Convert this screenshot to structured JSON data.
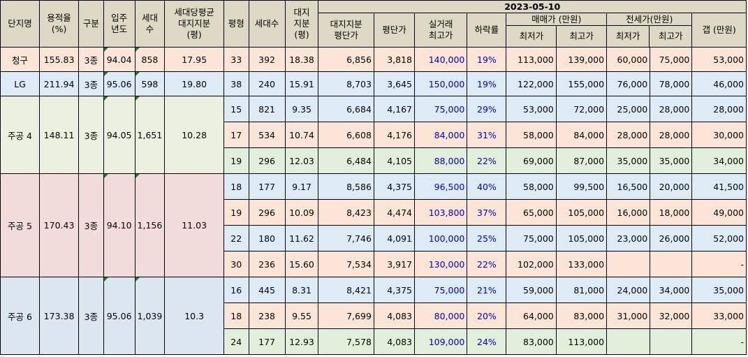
{
  "headers": {
    "complex": "단지명",
    "far": "용적율\n(%)",
    "zone": "구분",
    "year": "입주\n년도",
    "households": "세대\n수",
    "avg_land": "세대당평균\n대지지분\n(평)",
    "size": "평형",
    "size_households": "세대수",
    "land_share": "대지\n지분\n(평)",
    "date": "2023-05-10",
    "land_price": "대지지분\n평단가",
    "price_per_py": "평단가",
    "real_max": "실거래\n최고가",
    "drop": "하락률",
    "sale_group": "매매가 (만원)",
    "sale_min": "최저가",
    "sale_max": "최고가",
    "jeonse_group": "전세가(만원)",
    "jeonse_min": "최저가",
    "jeonse_max": "최고가",
    "gap": "갭 (만원)"
  },
  "complexes": [
    {
      "name": "청구",
      "far": "155.83",
      "zone": "3종",
      "year": "94.04",
      "households": "858",
      "avg_land": "17.95",
      "theme": "cg",
      "rows": [
        {
          "size": "33",
          "hh": "392",
          "land": "18.38",
          "land_price": "6,856",
          "price": "3,818",
          "real_max": "140,000",
          "drop": "19%",
          "sale_min": "113,000",
          "sale_max": "139,000",
          "jeonse_min": "60,000",
          "jeonse_max": "75,000",
          "gap": "53,000"
        }
      ]
    },
    {
      "name": "LG",
      "far": "211.94",
      "zone": "3종",
      "year": "95.06",
      "households": "598",
      "avg_land": "19.80",
      "theme": "lg",
      "rows": [
        {
          "size": "38",
          "hh": "240",
          "land": "15.91",
          "land_price": "8,703",
          "price": "3,645",
          "real_max": "150,000",
          "drop": "19%",
          "sale_min": "122,000",
          "sale_max": "155,000",
          "jeonse_min": "76,000",
          "jeonse_max": "78,000",
          "gap": "46,000"
        }
      ]
    },
    {
      "name": "주공 4",
      "far": "148.11",
      "zone": "3종",
      "year": "94.05",
      "households": "1,651",
      "avg_land": "10.28",
      "theme": "j4",
      "rows": [
        {
          "size": "15",
          "hh": "821",
          "land": "9.35",
          "land_price": "6,684",
          "price": "4,167",
          "real_max": "75,000",
          "drop": "29%",
          "sale_min": "53,000",
          "sale_max": "72,000",
          "jeonse_min": "25,000",
          "jeonse_max": "28,000",
          "gap": "28,000"
        },
        {
          "size": "17",
          "hh": "534",
          "land": "10.74",
          "land_price": "6,608",
          "price": "4,176",
          "real_max": "84,000",
          "drop": "31%",
          "sale_min": "58,000",
          "sale_max": "84,000",
          "jeonse_min": "28,000",
          "jeonse_max": "28,000",
          "gap": "30,000"
        },
        {
          "size": "19",
          "hh": "296",
          "land": "12.03",
          "land_price": "6,484",
          "price": "4,105",
          "real_max": "88,000",
          "drop": "22%",
          "sale_min": "69,000",
          "sale_max": "87,000",
          "jeonse_min": "35,000",
          "jeonse_max": "35,000",
          "gap": "34,000"
        }
      ]
    },
    {
      "name": "주공 5",
      "far": "170.43",
      "zone": "3종",
      "year": "94.10",
      "households": "1,156",
      "avg_land": "11.03",
      "theme": "j5",
      "rows": [
        {
          "size": "18",
          "hh": "177",
          "land": "9.17",
          "land_price": "8,586",
          "price": "4,375",
          "real_max": "96,500",
          "drop": "40%",
          "sale_min": "58,000",
          "sale_max": "99,500",
          "jeonse_min": "16,500",
          "jeonse_max": "20,000",
          "gap": "41,500"
        },
        {
          "size": "19",
          "hh": "296",
          "land": "10.09",
          "land_price": "8,423",
          "price": "4,474",
          "real_max": "103,800",
          "drop": "37%",
          "sale_min": "65,000",
          "sale_max": "105,000",
          "jeonse_min": "16,000",
          "jeonse_max": "18,000",
          "gap": "49,000"
        },
        {
          "size": "22",
          "hh": "180",
          "land": "11.62",
          "land_price": "7,746",
          "price": "4,091",
          "real_max": "100,000",
          "drop": "25%",
          "sale_min": "75,000",
          "sale_max": "105,000",
          "jeonse_min": "23,000",
          "jeonse_max": "26,000",
          "gap": "52,000"
        },
        {
          "size": "30",
          "hh": "236",
          "land": "15.60",
          "land_price": "7,534",
          "price": "3,917",
          "real_max": "130,000",
          "drop": "22%",
          "sale_min": "102,000",
          "sale_max": "133,000",
          "jeonse_min": "",
          "jeonse_max": "",
          "gap": "-"
        }
      ]
    },
    {
      "name": "주공 6",
      "far": "173.38",
      "zone": "3종",
      "year": "95.06",
      "households": "1,039",
      "avg_land": "10.3",
      "theme": "j6",
      "rows": [
        {
          "size": "16",
          "hh": "445",
          "land": "8.31",
          "land_price": "8,421",
          "price": "4,375",
          "real_max": "75,000",
          "drop": "21%",
          "sale_min": "59,000",
          "sale_max": "81,000",
          "jeonse_min": "24,000",
          "jeonse_max": "34,000",
          "gap": "35,000"
        },
        {
          "size": "18",
          "hh": "238",
          "land": "9.55",
          "land_price": "7,699",
          "price": "4,083",
          "real_max": "80,000",
          "drop": "20%",
          "sale_min": "64,000",
          "sale_max": "83,000",
          "jeonse_min": "31,000",
          "jeonse_max": "32,000",
          "gap": "33,000"
        },
        {
          "size": "24",
          "hh": "177",
          "land": "12.93",
          "land_price": "7,578",
          "price": "4,083",
          "real_max": "109,000",
          "drop": "24%",
          "sale_min": "83,000",
          "sale_max": "113,000",
          "jeonse_min": "",
          "jeonse_max": "",
          "gap": "-"
        }
      ]
    }
  ],
  "colors": {
    "header_bg": "#ddd9c4",
    "price_blue": "#0000cc",
    "indicator_green": "#1a7a1a"
  }
}
